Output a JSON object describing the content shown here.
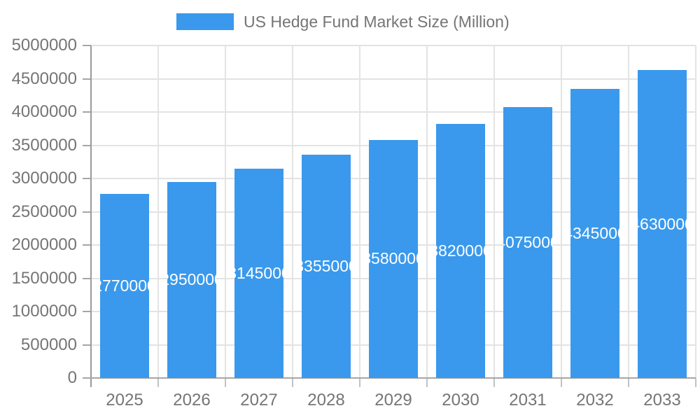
{
  "chart_data": {
    "type": "bar",
    "title": "US Hedge Fund Market Size (Million)",
    "legend": {
      "label": "US Hedge Fund Market Size (Million)",
      "position": "top-center"
    },
    "categories": [
      "2025",
      "2026",
      "2027",
      "2028",
      "2029",
      "2030",
      "2031",
      "2032",
      "2033"
    ],
    "series": [
      {
        "name": "US Hedge Fund Market Size (Million)",
        "values": [
          2770000,
          2950000,
          3145000,
          3355000,
          3580000,
          3820000,
          4075000,
          4345000,
          4630000
        ]
      }
    ],
    "bar_value_labels": [
      "2770000",
      "2950000",
      "3145000",
      "3355000",
      "3580000",
      "3820000",
      "4075000",
      "4345000",
      "4630000"
    ],
    "xlabel": "",
    "ylabel": "",
    "ylim": [
      0,
      5000000
    ],
    "ytick_step": 500000,
    "y_tick_labels": [
      "0",
      "500000",
      "1000000",
      "1500000",
      "2000000",
      "2500000",
      "3000000",
      "3500000",
      "4000000",
      "4500000",
      "5000000"
    ],
    "grid": true,
    "colors": {
      "bar": "#3a99ec",
      "bar_label": "#ffffff",
      "tick_text": "#757575",
      "grid": "#e3e3e3",
      "axis": "#a6a6a6"
    }
  }
}
